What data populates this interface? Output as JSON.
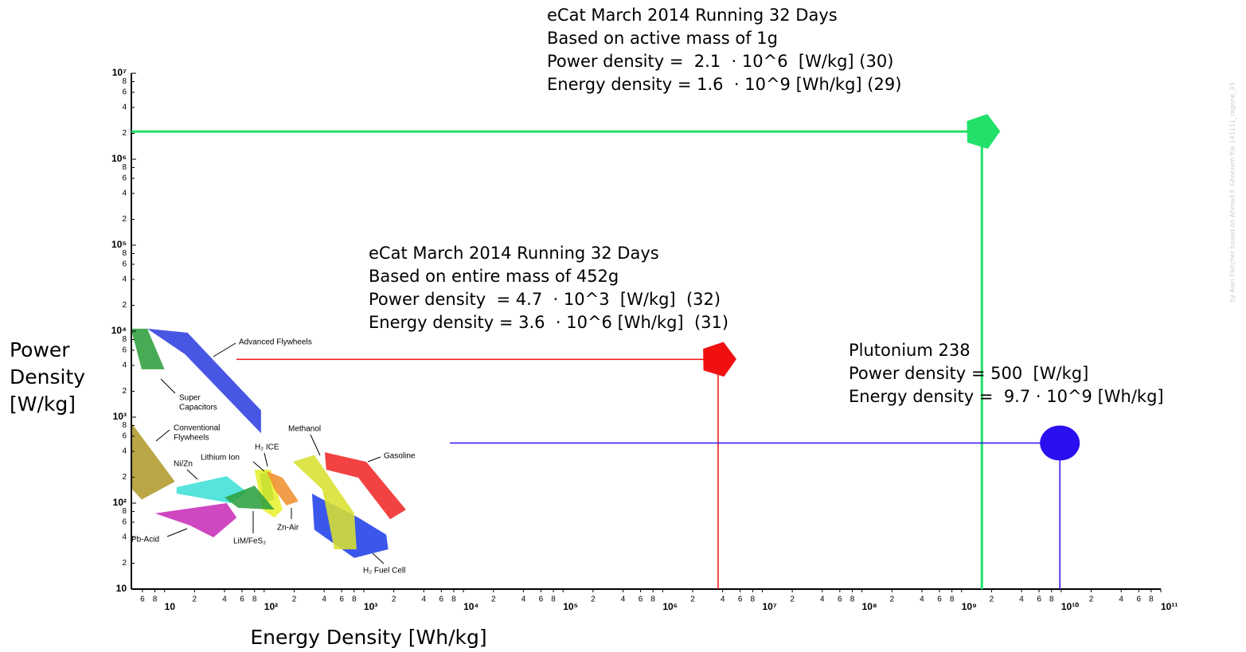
{
  "chart_data": {
    "type": "scatter",
    "log_x": true,
    "log_y": true,
    "xlabel": "Energy Density [Wh/kg]",
    "ylabel": [
      "Power",
      "Density",
      "[W/kg]"
    ],
    "watermark": "by Alan Fletcher based on Ahmed F. Ghoniem    file 141111_ragone_33",
    "xlim": [
      5,
      100000000000
    ],
    "ylim": [
      10,
      10000000
    ],
    "xticks": [
      {
        "value": 6,
        "label": "6"
      },
      {
        "value": 8,
        "label": "8"
      },
      10,
      {
        "value": 20,
        "label": "2"
      },
      {
        "value": 40,
        "label": "4"
      },
      {
        "value": 60,
        "label": "6"
      },
      {
        "value": 80,
        "label": "8"
      },
      {
        "value": 100,
        "label": "10²"
      },
      {
        "value": 200,
        "label": "2"
      },
      {
        "value": 400,
        "label": "4"
      },
      {
        "value": 600,
        "label": "6"
      },
      {
        "value": 800,
        "label": "8"
      },
      {
        "value": 1000,
        "label": "10³"
      },
      {
        "value": 2000,
        "label": "2"
      },
      {
        "value": 4000,
        "label": "4"
      },
      {
        "value": 6000,
        "label": "6"
      },
      {
        "value": 8000,
        "label": "8"
      },
      {
        "value": 10000,
        "label": "10⁴"
      },
      {
        "value": 20000,
        "label": "2"
      },
      {
        "value": 40000,
        "label": "4"
      },
      {
        "value": 60000,
        "label": "6"
      },
      {
        "value": 80000,
        "label": "8"
      },
      {
        "value": 100000,
        "label": "10⁵"
      },
      {
        "value": 200000,
        "label": "2"
      },
      {
        "value": 400000,
        "label": "4"
      },
      {
        "value": 600000,
        "label": "6"
      },
      {
        "value": 800000,
        "label": "8"
      },
      {
        "value": 1000000,
        "label": "10⁶"
      },
      {
        "value": 2000000,
        "label": "2"
      },
      {
        "value": 4000000,
        "label": "4"
      },
      {
        "value": 6000000,
        "label": "6"
      },
      {
        "value": 8000000,
        "label": "8"
      },
      {
        "value": 10000000,
        "label": "10⁷"
      },
      {
        "value": 20000000,
        "label": "2"
      },
      {
        "value": 40000000,
        "label": "4"
      },
      {
        "value": 60000000,
        "label": "6"
      },
      {
        "value": 80000000,
        "label": "8"
      },
      {
        "value": 100000000,
        "label": "10⁸"
      },
      {
        "value": 200000000,
        "label": "2"
      },
      {
        "value": 400000000,
        "label": "4"
      },
      {
        "value": 600000000,
        "label": "6"
      },
      {
        "value": 800000000,
        "label": "8"
      },
      {
        "value": 1000000000,
        "label": "10⁹"
      },
      {
        "value": 2000000000,
        "label": "2"
      },
      {
        "value": 4000000000,
        "label": "4"
      },
      {
        "value": 6000000000,
        "label": "6"
      },
      {
        "value": 8000000000,
        "label": "8"
      },
      {
        "value": 10000000000,
        "label": "10¹⁰"
      },
      {
        "value": 20000000000,
        "label": "2"
      },
      {
        "value": 40000000000,
        "label": "4"
      },
      {
        "value": 60000000000,
        "label": "6"
      },
      {
        "value": 80000000000,
        "label": "8"
      },
      {
        "value": 100000000000,
        "label": "10¹¹"
      }
    ],
    "yticks": [
      10,
      {
        "value": 20,
        "label": "2"
      },
      {
        "value": 40,
        "label": "4"
      },
      {
        "value": 60,
        "label": "6"
      },
      {
        "value": 80,
        "label": "8"
      },
      {
        "value": 100,
        "label": "10²"
      },
      {
        "value": 200,
        "label": "2"
      },
      {
        "value": 400,
        "label": "4"
      },
      {
        "value": 600,
        "label": "6"
      },
      {
        "value": 800,
        "label": "8"
      },
      {
        "value": 1000,
        "label": "10³"
      },
      {
        "value": 2000,
        "label": "2"
      },
      {
        "value": 4000,
        "label": "4"
      },
      {
        "value": 6000,
        "label": "6"
      },
      {
        "value": 8000,
        "label": "8"
      },
      {
        "value": 10000,
        "label": "10⁴"
      },
      {
        "value": 20000,
        "label": "2"
      },
      {
        "value": 40000,
        "label": "4"
      },
      {
        "value": 60000,
        "label": "6"
      },
      {
        "value": 80000,
        "label": "8"
      },
      {
        "value": 100000,
        "label": "10⁵"
      },
      {
        "value": 200000,
        "label": "2"
      },
      {
        "value": 400000,
        "label": "4"
      },
      {
        "value": 600000,
        "label": "6"
      },
      {
        "value": 800000,
        "label": "8"
      },
      {
        "value": 1000000,
        "label": "10⁶"
      },
      {
        "value": 2000000,
        "label": "2"
      },
      {
        "value": 4000000,
        "label": "4"
      },
      {
        "value": 6000000,
        "label": "6"
      },
      {
        "value": 8000000,
        "label": "8"
      },
      {
        "value": 10000000,
        "label": "10⁷"
      }
    ],
    "regions": [
      {
        "name": [
          "Advanced Flywheels"
        ],
        "color": "#2f3fe0",
        "points": [
          [
            6.7,
            10700
          ],
          [
            17,
            9600
          ],
          [
            93,
            1200
          ],
          [
            93,
            650
          ],
          [
            16,
            5400
          ]
        ]
      },
      {
        "name": [
          "Super",
          "Capacitors"
        ],
        "color": "#2e9e3e",
        "points": [
          [
            4.6,
            10700
          ],
          [
            6.7,
            10700
          ],
          [
            10,
            3600
          ],
          [
            5.9,
            3600
          ]
        ]
      },
      {
        "name": [
          "Conventional",
          "Flywheels"
        ],
        "color": "#b09a2a",
        "points": [
          [
            4.6,
            870
          ],
          [
            12.7,
            178
          ],
          [
            5.9,
            110
          ],
          [
            4.6,
            150
          ]
        ]
      },
      {
        "name": [
          "Ni/Zn"
        ],
        "color": "#3fe0d8",
        "points": [
          [
            13.2,
            153
          ],
          [
            42,
            206
          ],
          [
            67,
            135
          ],
          [
            46,
            100
          ],
          [
            13.2,
            129
          ]
        ]
      },
      {
        "name": [
          "Pb-Acid"
        ],
        "color": "#c82eb8",
        "points": [
          [
            8,
            76
          ],
          [
            42,
            100
          ],
          [
            53,
            68
          ],
          [
            31,
            40
          ],
          [
            18,
            55
          ]
        ]
      },
      {
        "name": [
          "Lithium Ion"
        ],
        "color": "#e8f030",
        "points": [
          [
            80,
            245
          ],
          [
            116,
            245
          ],
          [
            153,
            84
          ],
          [
            127,
            68
          ],
          [
            96,
            84
          ]
        ]
      },
      {
        "name": [
          "H₂ ICE"
        ],
        "color": "#c8e030",
        "points": [
          [
            90,
            220
          ],
          [
            110,
            230
          ],
          [
            127,
            110
          ],
          [
            100,
            100
          ]
        ]
      },
      {
        "name": [
          "LiM/FeS₂"
        ],
        "color": "#2ea040",
        "points": [
          [
            40,
            116
          ],
          [
            80,
            160
          ],
          [
            127,
            84
          ],
          [
            55,
            88
          ]
        ]
      },
      {
        "name": [
          "Zn-Air"
        ],
        "color": "#f09030",
        "points": [
          [
            106,
            235
          ],
          [
            153,
            198
          ],
          [
            221,
            105
          ],
          [
            167,
            94
          ],
          [
            127,
            144
          ]
        ]
      },
      {
        "name": [
          "H₂ Fuel Cell"
        ],
        "color": "#2040e8",
        "points": [
          [
            302,
            129
          ],
          [
            420,
            105
          ],
          [
            880,
            68
          ],
          [
            1680,
            43
          ],
          [
            1760,
            29
          ],
          [
            802,
            23
          ],
          [
            319,
            49
          ]
        ]
      },
      {
        "name": [
          "Gasoline"
        ],
        "color": "#f02828",
        "points": [
          [
            406,
            390
          ],
          [
            1060,
            302
          ],
          [
            2650,
            84
          ],
          [
            1840,
            65
          ],
          [
            880,
            198
          ],
          [
            420,
            245
          ]
        ]
      },
      {
        "name": [
          "Methanol"
        ],
        "color": "#d8e030",
        "points": [
          [
            194,
            302
          ],
          [
            319,
            363
          ],
          [
            802,
            76
          ],
          [
            847,
            29
          ],
          [
            506,
            29
          ],
          [
            384,
            144
          ]
        ]
      }
    ],
    "points": [
      {
        "x": 1600000000,
        "y": 2100000,
        "color": "#22e06a",
        "shape": "pentagon",
        "annotation": [
          "eCat March 2014 Running 32 Days",
          "Based on active mass of 1g",
          "Power density =  2.1  · 10^6  [W/kg] (30)",
          "Energy density = 1.6  · 10^9 [Wh/kg] (29)"
        ]
      },
      {
        "x": 3600000,
        "y": 4700,
        "color": "#f01010",
        "shape": "pentagon",
        "annotation": [
          "eCat March 2014 Running 32 Days",
          "Based on entire mass of 452g",
          "Power density  = 4.7  · 10^3  [W/kg]  (32)",
          "Energy density = 3.6  · 10^6 [Wh/kg]  (31)"
        ]
      },
      {
        "x": 9700000000,
        "y": 500,
        "color": "#2a10f0",
        "shape": "circle",
        "annotation": [
          "Plutonium 238",
          "Power density = 500  [W/kg]",
          "Energy density =  9.7 · 10^9 [Wh/kg]"
        ]
      }
    ]
  }
}
